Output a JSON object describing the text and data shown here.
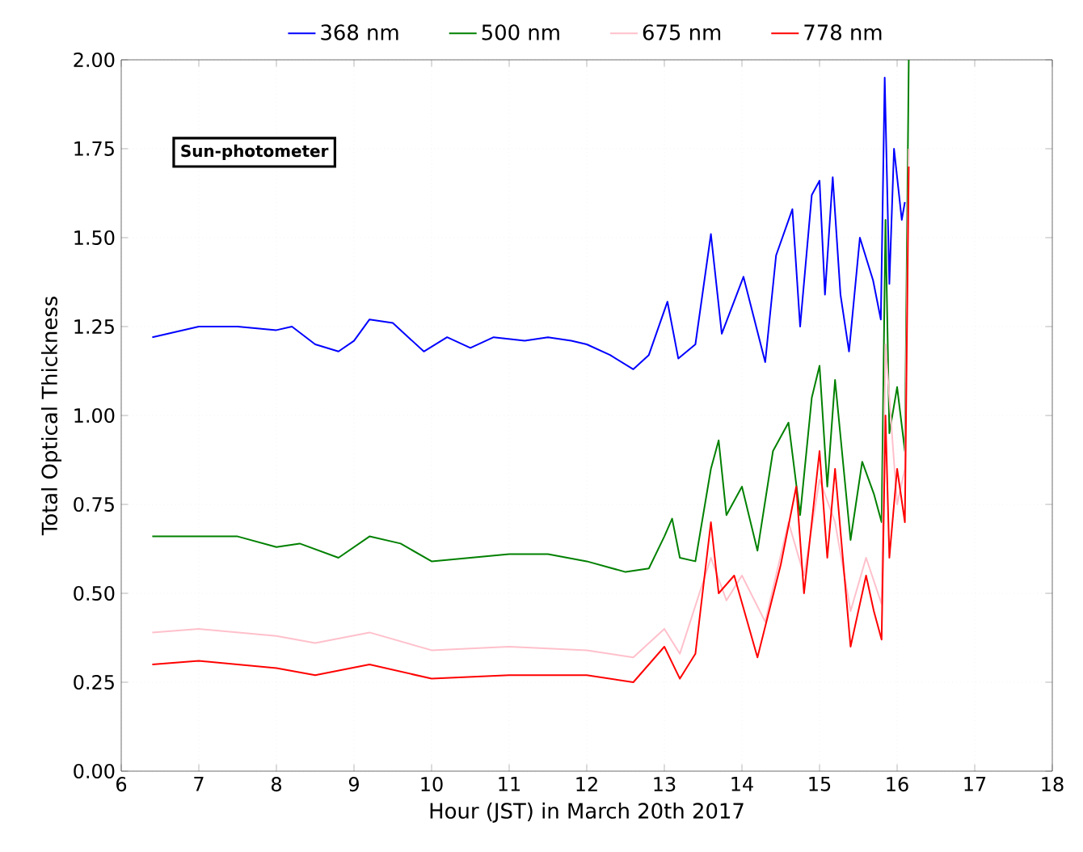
{
  "chart_data": {
    "type": "line",
    "xlabel": "Hour (JST) in March 20th 2017",
    "ylabel": "Total Optical Thickness",
    "annotations": [
      "Sun-photometer"
    ],
    "xlim": [
      6,
      18
    ],
    "xticks": [
      6,
      7,
      8,
      9,
      10,
      11,
      12,
      13,
      14,
      15,
      16,
      17,
      18
    ],
    "ylim": [
      0,
      2
    ],
    "yticks": [
      {
        "value": 0,
        "label": "0.00"
      },
      {
        "value": 0.25,
        "label": "0.25"
      },
      {
        "value": 0.5,
        "label": "0.50"
      },
      {
        "value": 0.75,
        "label": "0.75"
      },
      {
        "value": 1,
        "label": "1.00"
      },
      {
        "value": 1.25,
        "label": "1.25"
      },
      {
        "value": 1.5,
        "label": "1.50"
      },
      {
        "value": 1.75,
        "label": "1.75"
      },
      {
        "value": 2,
        "label": "2.00"
      }
    ],
    "grid": true,
    "legend": "top",
    "line_style": "solid",
    "marker": "none",
    "series": [
      {
        "name": "368 nm",
        "color": "#0000ff",
        "x": [
          6.4,
          7.0,
          7.5,
          8.0,
          8.2,
          8.5,
          8.8,
          9.0,
          9.2,
          9.5,
          9.7,
          9.9,
          10.2,
          10.5,
          10.8,
          11.2,
          11.5,
          11.8,
          12.0,
          12.3,
          12.6,
          12.8,
          13.04,
          13.18,
          13.4,
          13.6,
          13.74,
          14.02,
          14.3,
          14.44,
          14.65,
          14.75,
          14.9,
          15.0,
          15.07,
          15.17,
          15.27,
          15.38,
          15.52,
          15.69,
          15.79,
          15.84,
          15.9,
          15.96,
          16.06,
          16.1
        ],
        "values": [
          1.22,
          1.25,
          1.25,
          1.24,
          1.25,
          1.2,
          1.18,
          1.21,
          1.27,
          1.26,
          1.22,
          1.18,
          1.22,
          1.19,
          1.22,
          1.21,
          1.22,
          1.21,
          1.2,
          1.17,
          1.13,
          1.17,
          1.32,
          1.16,
          1.2,
          1.51,
          1.23,
          1.39,
          1.15,
          1.45,
          1.58,
          1.25,
          1.62,
          1.66,
          1.34,
          1.67,
          1.34,
          1.18,
          1.5,
          1.38,
          1.27,
          1.95,
          1.37,
          1.75,
          1.55,
          1.6
        ]
      },
      {
        "name": "500 nm",
        "color": "#008000",
        "x": [
          6.4,
          7.0,
          7.5,
          8.0,
          8.3,
          8.8,
          9.2,
          9.6,
          10.0,
          10.5,
          11.0,
          11.5,
          12.0,
          12.5,
          12.8,
          13.0,
          13.1,
          13.2,
          13.4,
          13.6,
          13.7,
          13.8,
          14.0,
          14.2,
          14.4,
          14.6,
          14.75,
          14.9,
          15.0,
          15.1,
          15.2,
          15.4,
          15.55,
          15.7,
          15.8,
          15.85,
          15.9,
          16.0,
          16.1,
          16.15
        ],
        "values": [
          0.66,
          0.66,
          0.66,
          0.63,
          0.64,
          0.6,
          0.66,
          0.64,
          0.59,
          0.6,
          0.61,
          0.61,
          0.59,
          0.56,
          0.57,
          0.66,
          0.71,
          0.6,
          0.59,
          0.85,
          0.93,
          0.72,
          0.8,
          0.62,
          0.9,
          0.98,
          0.72,
          1.05,
          1.14,
          0.8,
          1.1,
          0.65,
          0.87,
          0.78,
          0.7,
          1.55,
          0.95,
          1.08,
          0.9,
          2.0
        ]
      },
      {
        "name": "675 nm",
        "color": "#ffc0cb",
        "x": [
          6.4,
          7.0,
          8.0,
          8.5,
          9.2,
          10.0,
          11.0,
          12.0,
          12.6,
          13.0,
          13.2,
          13.6,
          13.8,
          14.0,
          14.3,
          14.6,
          14.8,
          15.0,
          15.2,
          15.4,
          15.6,
          15.8,
          15.85,
          16.0,
          16.1,
          16.15
        ],
        "values": [
          0.39,
          0.4,
          0.38,
          0.36,
          0.39,
          0.34,
          0.35,
          0.34,
          0.32,
          0.4,
          0.33,
          0.6,
          0.48,
          0.55,
          0.42,
          0.7,
          0.55,
          0.82,
          0.7,
          0.45,
          0.6,
          0.47,
          1.2,
          0.75,
          0.85,
          1.75
        ]
      },
      {
        "name": "778 nm",
        "color": "#ff0000",
        "x": [
          6.4,
          7.0,
          8.0,
          8.5,
          9.2,
          10.0,
          11.0,
          12.0,
          12.6,
          13.0,
          13.2,
          13.4,
          13.6,
          13.7,
          13.9,
          14.2,
          14.5,
          14.7,
          14.8,
          15.0,
          15.1,
          15.2,
          15.4,
          15.6,
          15.7,
          15.8,
          15.85,
          15.9,
          16.0,
          16.1,
          16.15
        ],
        "values": [
          0.3,
          0.31,
          0.29,
          0.27,
          0.3,
          0.26,
          0.27,
          0.27,
          0.25,
          0.35,
          0.26,
          0.33,
          0.7,
          0.5,
          0.55,
          0.32,
          0.58,
          0.8,
          0.5,
          0.9,
          0.6,
          0.85,
          0.35,
          0.55,
          0.45,
          0.37,
          1.0,
          0.6,
          0.85,
          0.7,
          1.7
        ]
      }
    ]
  }
}
